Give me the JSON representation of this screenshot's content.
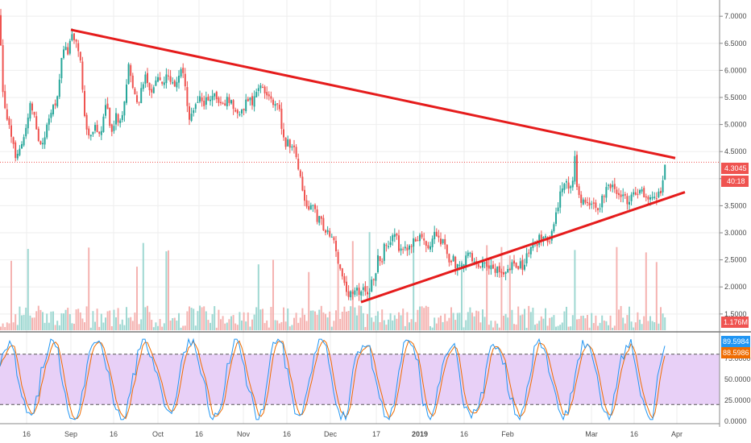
{
  "chart_data": [
    {
      "type": "candlestick",
      "panel": "price",
      "y_ticks": [
        "7.0000",
        "6.5000",
        "6.0000",
        "5.5000",
        "5.0000",
        "4.5000",
        "4.0000",
        "3.5000",
        "3.0000",
        "2.5000",
        "2.0000",
        "1.5000"
      ],
      "y_range": [
        1.2,
        7.3
      ],
      "x_ticks": [
        "16",
        "Sep",
        "16",
        "Oct",
        "16",
        "Nov",
        "16",
        "Dec",
        "17",
        "2019",
        "16",
        "Feb",
        "Mar",
        "16",
        "Apr"
      ],
      "close_path": [
        [
          0,
          7.0
        ],
        [
          3,
          5.6
        ],
        [
          8,
          5.2
        ],
        [
          14,
          4.7
        ],
        [
          20,
          4.4
        ],
        [
          26,
          4.6
        ],
        [
          32,
          5.0
        ],
        [
          38,
          5.4
        ],
        [
          42,
          5.2
        ],
        [
          48,
          4.6
        ],
        [
          55,
          4.8
        ],
        [
          60,
          5.0
        ],
        [
          66,
          5.3
        ],
        [
          72,
          5.6
        ],
        [
          76,
          6.1
        ],
        [
          80,
          6.5
        ],
        [
          84,
          6.2
        ],
        [
          88,
          6.7
        ],
        [
          92,
          6.6
        ],
        [
          96,
          6.5
        ],
        [
          100,
          6.2
        ],
        [
          104,
          5.2
        ],
        [
          108,
          4.9
        ],
        [
          112,
          4.8
        ],
        [
          118,
          5.0
        ],
        [
          124,
          4.8
        ],
        [
          128,
          5.1
        ],
        [
          132,
          5.4
        ],
        [
          136,
          5.0
        ],
        [
          140,
          4.9
        ],
        [
          144,
          5.2
        ],
        [
          148,
          4.9
        ],
        [
          152,
          5.2
        ],
        [
          156,
          5.6
        ],
        [
          160,
          6.1
        ],
        [
          164,
          5.8
        ],
        [
          168,
          5.5
        ],
        [
          172,
          5.4
        ],
        [
          176,
          5.7
        ],
        [
          180,
          5.9
        ],
        [
          184,
          5.7
        ],
        [
          188,
          5.6
        ],
        [
          192,
          5.8
        ],
        [
          196,
          5.9
        ],
        [
          200,
          5.7
        ],
        [
          204,
          5.8
        ],
        [
          210,
          5.9
        ],
        [
          216,
          5.7
        ],
        [
          222,
          5.9
        ],
        [
          226,
          6.0
        ],
        [
          230,
          5.7
        ],
        [
          234,
          5.1
        ],
        [
          238,
          5.2
        ],
        [
          242,
          5.4
        ],
        [
          248,
          5.5
        ],
        [
          254,
          5.4
        ],
        [
          260,
          5.5
        ],
        [
          266,
          5.5
        ],
        [
          272,
          5.4
        ],
        [
          278,
          5.4
        ],
        [
          284,
          5.5
        ],
        [
          290,
          5.3
        ],
        [
          296,
          5.1
        ],
        [
          302,
          5.3
        ],
        [
          308,
          5.5
        ],
        [
          314,
          5.4
        ],
        [
          320,
          5.6
        ],
        [
          324,
          5.8
        ],
        [
          328,
          5.6
        ],
        [
          334,
          5.5
        ],
        [
          340,
          5.4
        ],
        [
          346,
          5.3
        ],
        [
          350,
          4.9
        ],
        [
          354,
          4.6
        ],
        [
          358,
          4.7
        ],
        [
          362,
          4.6
        ],
        [
          366,
          4.6
        ],
        [
          370,
          4.1
        ],
        [
          374,
          3.9
        ],
        [
          378,
          3.6
        ],
        [
          382,
          3.5
        ],
        [
          386,
          3.5
        ],
        [
          390,
          3.4
        ],
        [
          394,
          3.2
        ],
        [
          398,
          3.3
        ],
        [
          402,
          3.1
        ],
        [
          406,
          3.0
        ],
        [
          410,
          2.9
        ],
        [
          414,
          2.8
        ],
        [
          418,
          2.6
        ],
        [
          422,
          2.3
        ],
        [
          426,
          2.2
        ],
        [
          430,
          1.9
        ],
        [
          434,
          1.8
        ],
        [
          438,
          1.9
        ],
        [
          442,
          2.1
        ],
        [
          446,
          1.8
        ],
        [
          450,
          1.9
        ],
        [
          454,
          2.0
        ],
        [
          458,
          1.9
        ],
        [
          462,
          2.1
        ],
        [
          466,
          2.3
        ],
        [
          470,
          2.6
        ],
        [
          474,
          2.5
        ],
        [
          478,
          2.8
        ],
        [
          482,
          2.7
        ],
        [
          486,
          2.9
        ],
        [
          490,
          3.0
        ],
        [
          494,
          2.8
        ],
        [
          498,
          2.6
        ],
        [
          502,
          2.7
        ],
        [
          506,
          2.6
        ],
        [
          510,
          2.8
        ],
        [
          514,
          2.9
        ],
        [
          518,
          2.8
        ],
        [
          522,
          3.0
        ],
        [
          526,
          2.9
        ],
        [
          530,
          2.8
        ],
        [
          534,
          2.8
        ],
        [
          538,
          3.0
        ],
        [
          542,
          2.9
        ],
        [
          546,
          2.8
        ],
        [
          550,
          2.9
        ],
        [
          554,
          2.6
        ],
        [
          558,
          2.5
        ],
        [
          562,
          2.5
        ],
        [
          566,
          2.4
        ],
        [
          570,
          2.5
        ],
        [
          574,
          2.4
        ],
        [
          578,
          2.5
        ],
        [
          582,
          2.6
        ],
        [
          586,
          2.5
        ],
        [
          590,
          2.4
        ],
        [
          594,
          2.4
        ],
        [
          598,
          2.4
        ],
        [
          602,
          2.5
        ],
        [
          606,
          2.4
        ],
        [
          610,
          2.4
        ],
        [
          614,
          2.3
        ],
        [
          618,
          2.3
        ],
        [
          622,
          2.2
        ],
        [
          626,
          2.3
        ],
        [
          630,
          2.3
        ],
        [
          634,
          2.4
        ],
        [
          638,
          2.4
        ],
        [
          642,
          2.3
        ],
        [
          646,
          2.4
        ],
        [
          650,
          2.4
        ],
        [
          654,
          2.6
        ],
        [
          658,
          2.7
        ],
        [
          662,
          2.8
        ],
        [
          666,
          2.8
        ],
        [
          670,
          2.9
        ],
        [
          674,
          2.9
        ],
        [
          678,
          2.9
        ],
        [
          682,
          2.9
        ],
        [
          686,
          3.0
        ],
        [
          690,
          3.3
        ],
        [
          694,
          3.5
        ],
        [
          696,
          3.8
        ],
        [
          700,
          4.0
        ],
        [
          704,
          3.9
        ],
        [
          708,
          3.9
        ],
        [
          712,
          4.1
        ],
        [
          714,
          4.5
        ],
        [
          716,
          3.9
        ],
        [
          720,
          3.6
        ],
        [
          724,
          3.6
        ],
        [
          728,
          3.5
        ],
        [
          732,
          3.6
        ],
        [
          736,
          3.5
        ],
        [
          740,
          3.4
        ],
        [
          744,
          3.3
        ],
        [
          748,
          3.7
        ],
        [
          752,
          3.8
        ],
        [
          756,
          3.9
        ],
        [
          760,
          3.8
        ],
        [
          764,
          3.8
        ],
        [
          768,
          3.7
        ],
        [
          772,
          3.7
        ],
        [
          776,
          3.6
        ],
        [
          780,
          3.6
        ],
        [
          784,
          3.8
        ],
        [
          788,
          3.8
        ],
        [
          792,
          3.7
        ],
        [
          796,
          3.8
        ],
        [
          800,
          3.7
        ],
        [
          804,
          3.7
        ],
        [
          808,
          3.6
        ],
        [
          812,
          3.6
        ],
        [
          816,
          3.7
        ],
        [
          820,
          3.8
        ],
        [
          824,
          4.1
        ],
        [
          827,
          4.3
        ]
      ],
      "trendlines": [
        {
          "name": "descending-resistance",
          "from": [
            88,
            6.75
          ],
          "to": [
            838,
            4.38
          ],
          "color": "#e51c1c"
        },
        {
          "name": "ascending-support",
          "from": [
            448,
            1.72
          ],
          "to": [
            850,
            3.75
          ],
          "color": "#e51c1c"
        }
      ],
      "last_price": "4.3045",
      "countdown": "40:18",
      "volume_label": "1.176M",
      "colors": {
        "up": "#26a69a",
        "down": "#ef5350",
        "price_tag": "#ef5350",
        "volume_tag": "#ef5350"
      }
    },
    {
      "type": "oscillator",
      "panel": "stoch-rsi",
      "y_ticks": [
        "75.0000",
        "50.0000",
        "25.0000",
        "0.0000"
      ],
      "y_range": [
        0,
        100
      ],
      "bands": [
        20,
        80
      ],
      "values": [
        "89.5984",
        "88.5986"
      ],
      "colors": {
        "k": "#2196f3",
        "d": "#ef6c00",
        "band_fill": "#e1bee7",
        "k_tag": "#2196f3",
        "d_tag": "#ef6c00"
      }
    }
  ]
}
